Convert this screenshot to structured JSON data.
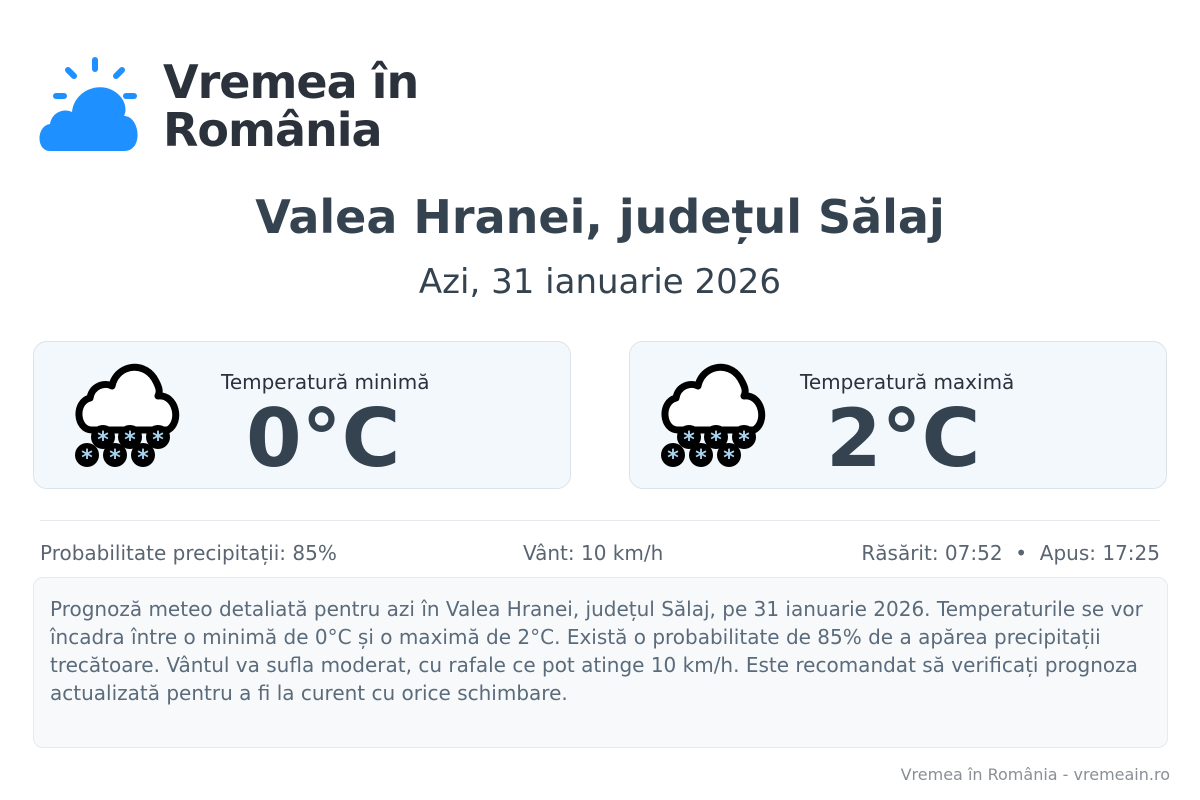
{
  "brand": {
    "line1": "Vremea în",
    "line2": "România",
    "logo_icon": "sun-cloud-icon",
    "accent": "#1e90ff"
  },
  "title": "Valea Hranei, județul Sălaj",
  "date": "Azi, 31 ianuarie 2026",
  "cards": [
    {
      "label": "Temperatură minimă",
      "value": "0°C",
      "icon": "snow-cloud-icon"
    },
    {
      "label": "Temperatură maximă",
      "value": "2°C",
      "icon": "snow-cloud-icon"
    }
  ],
  "stats": {
    "precip": "Probabilitate precipitații: 85%",
    "wind": "Vânt: 10 km/h",
    "sun": "Răsărit: 07:52  •  Apus: 17:25"
  },
  "description": "Prognoză meteo detaliată pentru azi în Valea Hranei, județul Sălaj, pe 31 ianuarie 2026. Temperaturile se vor încadra între o minimă de 0°C și o maximă de 2°C. Există o probabilitate de 85% de a apărea precipitații trecătoare. Vântul va sufla moderat, cu rafale ce pot atinge 10 km/h. Este recomandat să verificați prognoza actualizată pentru a fi la curent cu orice schimbare.",
  "footer": "Vremea în România - vremeain.ro"
}
